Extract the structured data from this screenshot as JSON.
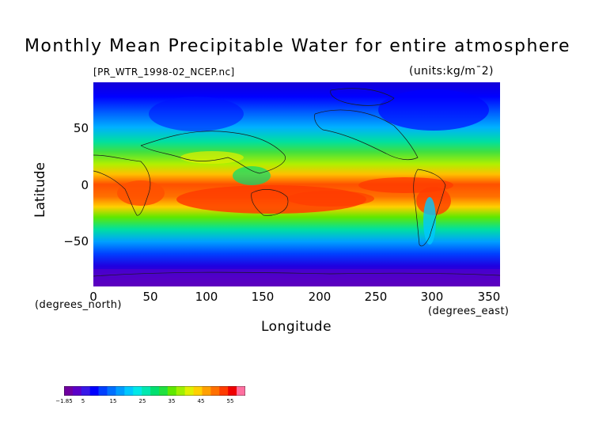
{
  "title": "Monthly Mean Precipitable Water for entire atmosphere",
  "file_label": "[PR_WTR_1998-02_NCEP.nc]",
  "units_label": "(units:kg/m¯2)",
  "y_axis": {
    "label": "Latitude",
    "unit_label": "(degrees_north)",
    "ticks": [
      "50",
      "0",
      "−50"
    ]
  },
  "x_axis": {
    "label": "Longitude",
    "unit_label": "(degrees_east)",
    "ticks": [
      "0",
      "50",
      "100",
      "150",
      "200",
      "250",
      "300",
      "350"
    ]
  },
  "colorbar": {
    "tick_labels": [
      "−1.85",
      "5",
      "15",
      "25",
      "35",
      "45",
      "55"
    ],
    "colors": [
      "#7000a0",
      "#5c00c8",
      "#3818e8",
      "#0000ff",
      "#0040ff",
      "#0070ff",
      "#009cff",
      "#00c8ff",
      "#00e8e8",
      "#00e8b0",
      "#00e070",
      "#20e040",
      "#60e800",
      "#a0f000",
      "#e0f000",
      "#ffd000",
      "#ffa000",
      "#ff7000",
      "#ff3c00",
      "#f00000",
      "#ff70a0"
    ]
  }
}
